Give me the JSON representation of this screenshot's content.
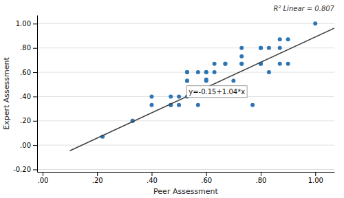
{
  "chart_data": {
    "type": "scatter",
    "xlabel": "Peer Assessment",
    "ylabel": "Expert Assessment",
    "annotations": [
      "R² Linear = 0.807",
      "y=-0.15+1.04*x"
    ],
    "series": [
      {
        "type": "scatter",
        "color": "#2E75B6",
        "x": [
          0.22,
          0.33,
          0.33,
          0.4,
          0.4,
          0.47,
          0.47,
          0.47,
          0.5,
          0.5,
          0.53,
          0.53,
          0.53,
          0.53,
          0.53,
          0.57,
          0.57,
          0.6,
          0.6,
          0.6,
          0.6,
          0.63,
          0.63,
          0.67,
          0.67,
          0.7,
          0.73,
          0.73,
          0.73,
          0.73,
          0.77,
          0.8,
          0.8,
          0.8,
          0.8,
          0.83,
          0.83,
          0.87,
          0.87,
          0.87,
          0.9,
          0.9,
          1.0
        ],
        "values": [
          0.07,
          0.2,
          0.2,
          0.33,
          0.4,
          0.33,
          0.33,
          0.4,
          0.33,
          0.4,
          0.4,
          0.53,
          0.53,
          0.6,
          0.6,
          0.33,
          0.6,
          0.53,
          0.54,
          0.6,
          0.6,
          0.6,
          0.67,
          0.67,
          0.67,
          0.53,
          0.67,
          0.67,
          0.73,
          0.8,
          0.33,
          0.67,
          0.67,
          0.8,
          0.8,
          0.6,
          0.8,
          0.67,
          0.8,
          0.87,
          0.67,
          0.87,
          1.0
        ]
      },
      {
        "type": "line",
        "color": "#404040",
        "x": [
          0.1,
          1.07
        ],
        "values": [
          -0.046,
          0.9628
        ]
      }
    ],
    "xlim": [
      -0.02,
      1.07
    ],
    "ylim": [
      -0.22,
      1.07
    ],
    "xticks": [
      {
        "value": 0.0,
        "label": ".00"
      },
      {
        "value": 0.2,
        "label": ".20"
      },
      {
        "value": 0.4,
        "label": ".40"
      },
      {
        "value": 0.6,
        "label": ".60"
      },
      {
        "value": 0.8,
        "label": ".80"
      },
      {
        "value": 1.0,
        "label": "1.00"
      }
    ],
    "yticks": [
      {
        "value": -0.2,
        "label": "-0.20"
      },
      {
        "value": 0.0,
        "label": ".00"
      },
      {
        "value": 0.2,
        "label": ".20"
      },
      {
        "value": 0.4,
        "label": ".40"
      },
      {
        "value": 0.6,
        "label": ".60"
      },
      {
        "value": 0.8,
        "label": ".80"
      },
      {
        "value": 1.0,
        "label": "1.00"
      }
    ],
    "grid": true
  }
}
